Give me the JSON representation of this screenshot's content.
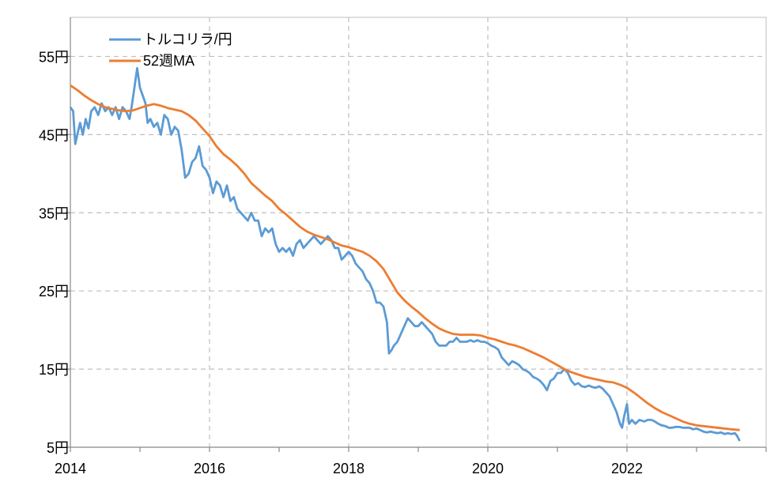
{
  "chart_data": {
    "type": "line",
    "x_ticks": [
      "2014",
      "2016",
      "2018",
      "2020",
      "2022"
    ],
    "y_ticks": [
      "5円",
      "15円",
      "25円",
      "35円",
      "45円",
      "55円"
    ],
    "xlim": [
      2014.0,
      2024.0
    ],
    "ylim": [
      5,
      60
    ],
    "grid": true,
    "legend_position": "top-left",
    "series": [
      {
        "name": "トルコリラ/円",
        "color": "#5B9BD5",
        "points": [
          [
            2014.0,
            48.5
          ],
          [
            2014.04,
            48.0
          ],
          [
            2014.07,
            43.8
          ],
          [
            2014.1,
            45.0
          ],
          [
            2014.14,
            46.5
          ],
          [
            2014.18,
            45.0
          ],
          [
            2014.22,
            47.0
          ],
          [
            2014.26,
            45.8
          ],
          [
            2014.3,
            48.0
          ],
          [
            2014.35,
            48.5
          ],
          [
            2014.4,
            47.5
          ],
          [
            2014.45,
            49.0
          ],
          [
            2014.5,
            48.0
          ],
          [
            2014.55,
            48.5
          ],
          [
            2014.6,
            47.5
          ],
          [
            2014.65,
            48.5
          ],
          [
            2014.7,
            47.0
          ],
          [
            2014.75,
            48.5
          ],
          [
            2014.8,
            48.0
          ],
          [
            2014.85,
            47.0
          ],
          [
            2014.88,
            48.5
          ],
          [
            2014.92,
            51.0
          ],
          [
            2014.96,
            53.5
          ],
          [
            2015.0,
            51.0
          ],
          [
            2015.04,
            50.0
          ],
          [
            2015.08,
            49.0
          ],
          [
            2015.11,
            46.5
          ],
          [
            2015.15,
            47.0
          ],
          [
            2015.2,
            46.0
          ],
          [
            2015.25,
            46.5
          ],
          [
            2015.3,
            45.0
          ],
          [
            2015.35,
            47.5
          ],
          [
            2015.4,
            47.0
          ],
          [
            2015.45,
            45.0
          ],
          [
            2015.5,
            46.0
          ],
          [
            2015.55,
            45.5
          ],
          [
            2015.6,
            43.0
          ],
          [
            2015.65,
            39.5
          ],
          [
            2015.7,
            40.0
          ],
          [
            2015.75,
            41.5
          ],
          [
            2015.8,
            42.0
          ],
          [
            2015.85,
            43.5
          ],
          [
            2015.9,
            41.0
          ],
          [
            2015.95,
            40.5
          ],
          [
            2016.0,
            39.5
          ],
          [
            2016.05,
            37.5
          ],
          [
            2016.1,
            39.0
          ],
          [
            2016.15,
            38.5
          ],
          [
            2016.2,
            37.0
          ],
          [
            2016.25,
            38.5
          ],
          [
            2016.3,
            36.5
          ],
          [
            2016.35,
            37.0
          ],
          [
            2016.4,
            35.5
          ],
          [
            2016.45,
            35.0
          ],
          [
            2016.5,
            34.5
          ],
          [
            2016.55,
            34.0
          ],
          [
            2016.6,
            35.0
          ],
          [
            2016.65,
            34.0
          ],
          [
            2016.7,
            34.0
          ],
          [
            2016.75,
            32.0
          ],
          [
            2016.8,
            33.0
          ],
          [
            2016.85,
            32.5
          ],
          [
            2016.9,
            33.0
          ],
          [
            2016.95,
            31.0
          ],
          [
            2017.0,
            30.0
          ],
          [
            2017.05,
            30.5
          ],
          [
            2017.1,
            30.0
          ],
          [
            2017.15,
            30.5
          ],
          [
            2017.2,
            29.5
          ],
          [
            2017.25,
            31.0
          ],
          [
            2017.3,
            31.5
          ],
          [
            2017.35,
            30.5
          ],
          [
            2017.4,
            31.0
          ],
          [
            2017.45,
            31.5
          ],
          [
            2017.5,
            32.0
          ],
          [
            2017.55,
            31.5
          ],
          [
            2017.6,
            31.0
          ],
          [
            2017.65,
            31.5
          ],
          [
            2017.7,
            32.0
          ],
          [
            2017.75,
            31.5
          ],
          [
            2017.8,
            30.5
          ],
          [
            2017.85,
            30.5
          ],
          [
            2017.9,
            29.0
          ],
          [
            2017.95,
            29.5
          ],
          [
            2018.0,
            30.0
          ],
          [
            2018.05,
            29.5
          ],
          [
            2018.1,
            28.5
          ],
          [
            2018.15,
            28.0
          ],
          [
            2018.2,
            27.5
          ],
          [
            2018.25,
            26.5
          ],
          [
            2018.3,
            26.0
          ],
          [
            2018.35,
            25.0
          ],
          [
            2018.4,
            23.5
          ],
          [
            2018.45,
            23.5
          ],
          [
            2018.5,
            23.0
          ],
          [
            2018.55,
            21.0
          ],
          [
            2018.58,
            17.0
          ],
          [
            2018.62,
            17.5
          ],
          [
            2018.65,
            18.0
          ],
          [
            2018.7,
            18.5
          ],
          [
            2018.75,
            19.5
          ],
          [
            2018.8,
            20.5
          ],
          [
            2018.85,
            21.5
          ],
          [
            2018.9,
            21.0
          ],
          [
            2018.95,
            20.5
          ],
          [
            2019.0,
            20.5
          ],
          [
            2019.05,
            21.0
          ],
          [
            2019.1,
            20.5
          ],
          [
            2019.15,
            20.0
          ],
          [
            2019.2,
            19.5
          ],
          [
            2019.25,
            18.5
          ],
          [
            2019.3,
            18.0
          ],
          [
            2019.35,
            18.0
          ],
          [
            2019.4,
            18.0
          ],
          [
            2019.45,
            18.5
          ],
          [
            2019.5,
            18.5
          ],
          [
            2019.55,
            19.0
          ],
          [
            2019.6,
            18.5
          ],
          [
            2019.65,
            18.5
          ],
          [
            2019.7,
            18.5
          ],
          [
            2019.75,
            18.7
          ],
          [
            2019.8,
            18.5
          ],
          [
            2019.85,
            18.7
          ],
          [
            2019.9,
            18.5
          ],
          [
            2019.95,
            18.5
          ],
          [
            2020.0,
            18.3
          ],
          [
            2020.05,
            18.0
          ],
          [
            2020.1,
            17.8
          ],
          [
            2020.15,
            17.5
          ],
          [
            2020.2,
            16.5
          ],
          [
            2020.25,
            16.0
          ],
          [
            2020.3,
            15.5
          ],
          [
            2020.35,
            16.0
          ],
          [
            2020.4,
            15.8
          ],
          [
            2020.45,
            15.5
          ],
          [
            2020.5,
            15.0
          ],
          [
            2020.55,
            14.8
          ],
          [
            2020.6,
            14.5
          ],
          [
            2020.65,
            14.0
          ],
          [
            2020.7,
            13.8
          ],
          [
            2020.75,
            13.5
          ],
          [
            2020.8,
            13.0
          ],
          [
            2020.85,
            12.3
          ],
          [
            2020.9,
            13.5
          ],
          [
            2020.95,
            13.8
          ],
          [
            2021.0,
            14.5
          ],
          [
            2021.05,
            14.5
          ],
          [
            2021.1,
            15.0
          ],
          [
            2021.15,
            14.5
          ],
          [
            2021.2,
            13.5
          ],
          [
            2021.25,
            13.0
          ],
          [
            2021.3,
            13.2
          ],
          [
            2021.35,
            12.8
          ],
          [
            2021.4,
            12.7
          ],
          [
            2021.45,
            12.9
          ],
          [
            2021.5,
            12.7
          ],
          [
            2021.55,
            12.6
          ],
          [
            2021.6,
            12.8
          ],
          [
            2021.65,
            12.5
          ],
          [
            2021.7,
            12.0
          ],
          [
            2021.75,
            11.5
          ],
          [
            2021.8,
            10.5
          ],
          [
            2021.85,
            9.5
          ],
          [
            2021.9,
            8.0
          ],
          [
            2021.93,
            7.5
          ],
          [
            2021.96,
            9.0
          ],
          [
            2022.0,
            10.5
          ],
          [
            2022.03,
            8.0
          ],
          [
            2022.07,
            8.5
          ],
          [
            2022.12,
            8.0
          ],
          [
            2022.18,
            8.5
          ],
          [
            2022.25,
            8.3
          ],
          [
            2022.3,
            8.5
          ],
          [
            2022.35,
            8.5
          ],
          [
            2022.4,
            8.3
          ],
          [
            2022.45,
            8.0
          ],
          [
            2022.5,
            7.8
          ],
          [
            2022.55,
            7.7
          ],
          [
            2022.6,
            7.5
          ],
          [
            2022.65,
            7.5
          ],
          [
            2022.7,
            7.6
          ],
          [
            2022.75,
            7.6
          ],
          [
            2022.8,
            7.5
          ],
          [
            2022.85,
            7.5
          ],
          [
            2022.9,
            7.5
          ],
          [
            2022.95,
            7.3
          ],
          [
            2023.0,
            7.4
          ],
          [
            2023.05,
            7.2
          ],
          [
            2023.1,
            7.0
          ],
          [
            2023.15,
            6.9
          ],
          [
            2023.2,
            7.0
          ],
          [
            2023.25,
            6.9
          ],
          [
            2023.3,
            6.8
          ],
          [
            2023.35,
            6.9
          ],
          [
            2023.4,
            6.7
          ],
          [
            2023.45,
            6.8
          ],
          [
            2023.5,
            6.7
          ],
          [
            2023.55,
            6.8
          ],
          [
            2023.58,
            6.5
          ],
          [
            2023.62,
            5.8
          ]
        ]
      },
      {
        "name": "52週MA",
        "color": "#ED7D31",
        "points": [
          [
            2014.0,
            51.3
          ],
          [
            2014.1,
            50.7
          ],
          [
            2014.2,
            50.0
          ],
          [
            2014.3,
            49.4
          ],
          [
            2014.4,
            48.9
          ],
          [
            2014.5,
            48.5
          ],
          [
            2014.6,
            48.3
          ],
          [
            2014.7,
            48.1
          ],
          [
            2014.8,
            48.0
          ],
          [
            2014.9,
            48.1
          ],
          [
            2015.0,
            48.4
          ],
          [
            2015.1,
            48.7
          ],
          [
            2015.2,
            48.9
          ],
          [
            2015.3,
            48.7
          ],
          [
            2015.4,
            48.4
          ],
          [
            2015.5,
            48.2
          ],
          [
            2015.6,
            48.0
          ],
          [
            2015.7,
            47.5
          ],
          [
            2015.8,
            46.8
          ],
          [
            2015.9,
            45.8
          ],
          [
            2016.0,
            44.8
          ],
          [
            2016.1,
            43.5
          ],
          [
            2016.2,
            42.5
          ],
          [
            2016.3,
            41.8
          ],
          [
            2016.4,
            41.0
          ],
          [
            2016.5,
            40.0
          ],
          [
            2016.6,
            38.8
          ],
          [
            2016.7,
            38.0
          ],
          [
            2016.8,
            37.2
          ],
          [
            2016.9,
            36.5
          ],
          [
            2017.0,
            35.5
          ],
          [
            2017.1,
            34.8
          ],
          [
            2017.2,
            34.0
          ],
          [
            2017.3,
            33.2
          ],
          [
            2017.4,
            32.6
          ],
          [
            2017.5,
            32.2
          ],
          [
            2017.6,
            31.9
          ],
          [
            2017.7,
            31.6
          ],
          [
            2017.8,
            31.2
          ],
          [
            2017.9,
            30.8
          ],
          [
            2018.0,
            30.6
          ],
          [
            2018.1,
            30.3
          ],
          [
            2018.2,
            30.0
          ],
          [
            2018.3,
            29.5
          ],
          [
            2018.4,
            28.8
          ],
          [
            2018.5,
            27.8
          ],
          [
            2018.6,
            26.3
          ],
          [
            2018.7,
            24.8
          ],
          [
            2018.8,
            23.8
          ],
          [
            2018.9,
            23.0
          ],
          [
            2019.0,
            22.3
          ],
          [
            2019.1,
            21.5
          ],
          [
            2019.2,
            20.8
          ],
          [
            2019.3,
            20.2
          ],
          [
            2019.4,
            19.8
          ],
          [
            2019.5,
            19.5
          ],
          [
            2019.6,
            19.4
          ],
          [
            2019.7,
            19.4
          ],
          [
            2019.8,
            19.4
          ],
          [
            2019.9,
            19.3
          ],
          [
            2020.0,
            19.0
          ],
          [
            2020.1,
            18.8
          ],
          [
            2020.2,
            18.5
          ],
          [
            2020.3,
            18.2
          ],
          [
            2020.4,
            18.0
          ],
          [
            2020.5,
            17.7
          ],
          [
            2020.6,
            17.3
          ],
          [
            2020.7,
            16.9
          ],
          [
            2020.8,
            16.5
          ],
          [
            2020.9,
            16.0
          ],
          [
            2021.0,
            15.5
          ],
          [
            2021.1,
            15.0
          ],
          [
            2021.2,
            14.6
          ],
          [
            2021.3,
            14.3
          ],
          [
            2021.4,
            14.0
          ],
          [
            2021.5,
            13.8
          ],
          [
            2021.6,
            13.6
          ],
          [
            2021.7,
            13.4
          ],
          [
            2021.8,
            13.3
          ],
          [
            2021.9,
            13.0
          ],
          [
            2022.0,
            12.6
          ],
          [
            2022.1,
            12.0
          ],
          [
            2022.2,
            11.3
          ],
          [
            2022.3,
            10.6
          ],
          [
            2022.4,
            10.0
          ],
          [
            2022.5,
            9.5
          ],
          [
            2022.6,
            9.1
          ],
          [
            2022.7,
            8.7
          ],
          [
            2022.8,
            8.3
          ],
          [
            2022.9,
            8.0
          ],
          [
            2023.0,
            7.8
          ],
          [
            2023.1,
            7.7
          ],
          [
            2023.2,
            7.6
          ],
          [
            2023.3,
            7.5
          ],
          [
            2023.4,
            7.4
          ],
          [
            2023.5,
            7.3
          ],
          [
            2023.62,
            7.2
          ]
        ]
      }
    ]
  }
}
